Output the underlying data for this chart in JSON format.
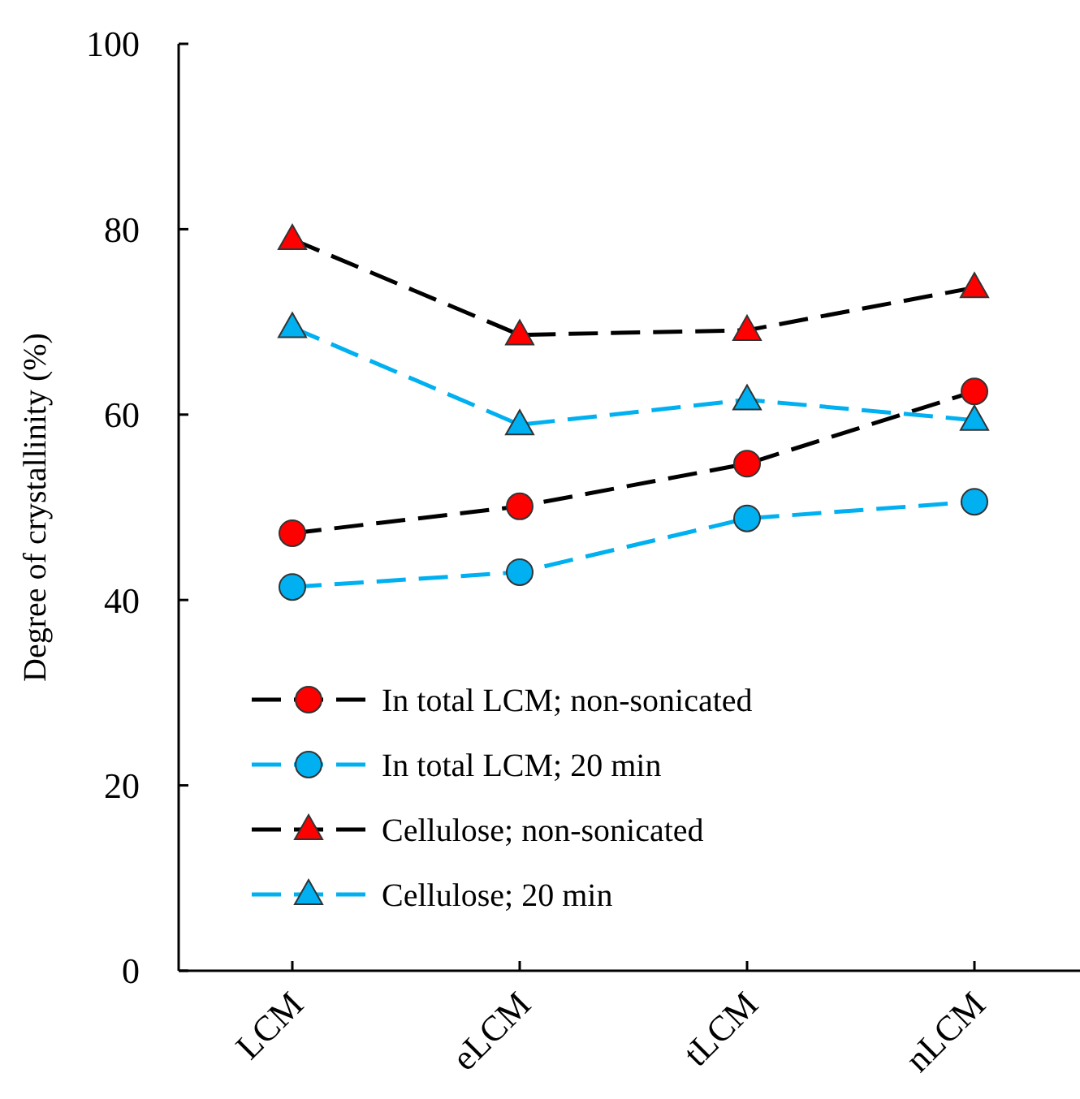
{
  "chart_data": {
    "type": "line",
    "ylabel": "Degree of crystallinity (%)",
    "categories": [
      "LCM",
      "eLCM",
      "tLCM",
      "nLCM"
    ],
    "ylim": [
      0,
      100
    ],
    "yticks": [
      0,
      20,
      40,
      60,
      80,
      100
    ],
    "grid": false,
    "legend": "bottom left",
    "line_style": "dashed",
    "series": [
      {
        "name": "In total LCM; non-sonicated",
        "color": "#000000",
        "colors": [
          "#ff0000",
          "#ff0000",
          "#ff0000",
          "#ff0000"
        ],
        "marker": "circle",
        "values": [
          47.2,
          50.1,
          54.7,
          62.5
        ]
      },
      {
        "name": "In total LCM; 20 min",
        "color": "#00b0f0",
        "marker": "circle",
        "values": [
          41.4,
          43.0,
          48.8,
          50.6
        ]
      },
      {
        "name": "Cellulose; non-sonicated",
        "color": "#000000",
        "colors": [
          "#ff0000",
          "#ff0000",
          "#ff0000",
          "#ff0000"
        ],
        "marker": "triangle",
        "values": [
          78.9,
          68.6,
          69.1,
          73.7
        ]
      },
      {
        "name": "Cellulose; 20 min",
        "color": "#00b0f0",
        "marker": "triangle",
        "values": [
          69.4,
          58.9,
          61.6,
          59.4
        ]
      }
    ]
  }
}
